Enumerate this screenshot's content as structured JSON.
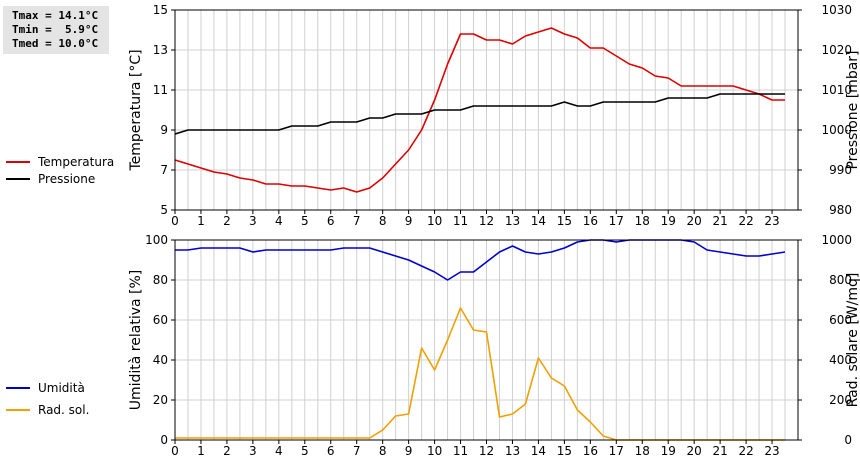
{
  "stats": {
    "tmax": "Tmax = 14.1°C",
    "tmin": "Tmin =  5.9°C",
    "tmed": "Tmed = 10.0°C"
  },
  "colors": {
    "temperatura": "#dd0000",
    "pressione": "#000000",
    "umidita": "#0000cc",
    "rad_sol": "#f0a000",
    "grid": "#d0d0d0"
  },
  "chart_data": [
    {
      "type": "line",
      "x_ticks": [
        "0",
        "1",
        "2",
        "3",
        "4",
        "5",
        "6",
        "7",
        "8",
        "9",
        "10",
        "11",
        "12",
        "13",
        "14",
        "15",
        "16",
        "17",
        "18",
        "19",
        "20",
        "21",
        "22",
        "23"
      ],
      "xlim": [
        0,
        24
      ],
      "ylabel": "Temperatura [°C]",
      "ylim": [
        5,
        15
      ],
      "y_ticks": [
        "5",
        "7",
        "9",
        "11",
        "13",
        "15"
      ],
      "y2label": "Pressione [mbar]",
      "y2lim": [
        980,
        1030
      ],
      "y2_ticks": [
        "980",
        "990",
        "1000",
        "1010",
        "1020",
        "1030"
      ],
      "grid": true,
      "series": [
        {
          "name": "Temperatura",
          "axis": "left",
          "x": [
            0,
            0.5,
            1,
            1.5,
            2,
            2.5,
            3,
            3.5,
            4,
            4.5,
            5,
            5.5,
            6,
            6.5,
            7,
            7.5,
            8,
            8.5,
            9,
            9.5,
            10,
            10.5,
            11,
            11.5,
            12,
            12.5,
            13,
            13.5,
            14,
            14.5,
            15,
            15.5,
            16,
            16.5,
            17,
            17.5,
            18,
            18.5,
            19,
            19.5,
            20,
            20.5,
            21,
            21.5,
            22,
            22.5,
            23,
            23.5
          ],
          "values": [
            7.5,
            7.3,
            7.1,
            6.9,
            6.8,
            6.6,
            6.5,
            6.3,
            6.3,
            6.2,
            6.2,
            6.1,
            6.0,
            6.1,
            5.9,
            6.1,
            6.6,
            7.3,
            8.0,
            9.0,
            10.5,
            12.3,
            13.8,
            13.8,
            13.5,
            13.5,
            13.3,
            13.7,
            13.9,
            14.1,
            13.8,
            13.6,
            13.1,
            13.1,
            12.7,
            12.3,
            12.1,
            11.7,
            11.6,
            11.2,
            11.2,
            11.2,
            11.2,
            11.2,
            11.0,
            10.8,
            10.5,
            10.5
          ]
        },
        {
          "name": "Pressione",
          "axis": "right",
          "x": [
            0,
            0.5,
            1,
            1.5,
            2,
            2.5,
            3,
            3.5,
            4,
            4.5,
            5,
            5.5,
            6,
            6.5,
            7,
            7.5,
            8,
            8.5,
            9,
            9.5,
            10,
            10.5,
            11,
            11.5,
            12,
            12.5,
            13,
            13.5,
            14,
            14.5,
            15,
            15.5,
            16,
            16.5,
            17,
            17.5,
            18,
            18.5,
            19,
            19.5,
            20,
            20.5,
            21,
            21.5,
            22,
            22.5,
            23,
            23.5
          ],
          "values": [
            999,
            1000,
            1000,
            1000,
            1000,
            1000,
            1000,
            1000,
            1000,
            1001,
            1001,
            1001,
            1002,
            1002,
            1002,
            1003,
            1003,
            1004,
            1004,
            1004,
            1005,
            1005,
            1005,
            1006,
            1006,
            1006,
            1006,
            1006,
            1006,
            1006,
            1007,
            1006,
            1006,
            1007,
            1007,
            1007,
            1007,
            1007,
            1008,
            1008,
            1008,
            1008,
            1009,
            1009,
            1009,
            1009,
            1009,
            1009
          ]
        }
      ]
    },
    {
      "type": "line",
      "x_ticks": [
        "0",
        "1",
        "2",
        "3",
        "4",
        "5",
        "6",
        "7",
        "8",
        "9",
        "10",
        "11",
        "12",
        "13",
        "14",
        "15",
        "16",
        "17",
        "18",
        "19",
        "20",
        "21",
        "22",
        "23"
      ],
      "xlim": [
        0,
        24
      ],
      "ylabel": "Umidità relativa [%]",
      "ylim": [
        0,
        100
      ],
      "y_ticks": [
        "0",
        "20",
        "40",
        "60",
        "80",
        "100"
      ],
      "y2label": "Rad. solare [W/mq]",
      "y2lim": [
        0,
        1000
      ],
      "y2_ticks": [
        "0",
        "200",
        "400",
        "600",
        "800",
        "1000"
      ],
      "grid": true,
      "series": [
        {
          "name": "Umidità",
          "axis": "left",
          "x": [
            0,
            0.5,
            1,
            1.5,
            2,
            2.5,
            3,
            3.5,
            4,
            4.5,
            5,
            5.5,
            6,
            6.5,
            7,
            7.5,
            8,
            8.5,
            9,
            9.5,
            10,
            10.5,
            11,
            11.5,
            12,
            12.5,
            13,
            13.5,
            14,
            14.5,
            15,
            15.5,
            16,
            16.5,
            17,
            17.5,
            18,
            18.5,
            19,
            19.5,
            20,
            20.5,
            21,
            21.5,
            22,
            22.5,
            23,
            23.5
          ],
          "values": [
            95,
            95,
            96,
            96,
            96,
            96,
            94,
            95,
            95,
            95,
            95,
            95,
            95,
            96,
            96,
            96,
            94,
            92,
            90,
            87,
            84,
            80,
            84,
            84,
            89,
            94,
            97,
            94,
            93,
            94,
            96,
            99,
            100,
            100,
            99,
            100,
            100,
            100,
            100,
            100,
            99,
            95,
            94,
            93,
            92,
            92,
            93,
            94
          ]
        },
        {
          "name": "Rad. sol.",
          "axis": "right",
          "x": [
            0,
            0.5,
            1,
            1.5,
            2,
            2.5,
            3,
            3.5,
            4,
            4.5,
            5,
            5.5,
            6,
            6.5,
            7,
            7.5,
            8,
            8.5,
            9,
            9.5,
            10,
            10.5,
            11,
            11.5,
            12,
            12.5,
            13,
            13.5,
            14,
            14.5,
            15,
            15.5,
            16,
            16.5,
            17,
            17.5,
            18,
            18.5,
            19,
            19.5,
            20,
            20.5,
            21,
            21.5,
            22,
            22.5,
            23,
            23.5
          ],
          "values": [
            10,
            10,
            10,
            10,
            10,
            10,
            10,
            10,
            10,
            10,
            10,
            10,
            10,
            10,
            10,
            10,
            50,
            120,
            130,
            460,
            350,
            500,
            660,
            550,
            540,
            115,
            130,
            180,
            410,
            310,
            270,
            150,
            90,
            20,
            0,
            0,
            0,
            0,
            0,
            0,
            0,
            0,
            0,
            0,
            0,
            0,
            0,
            0
          ]
        }
      ]
    }
  ]
}
